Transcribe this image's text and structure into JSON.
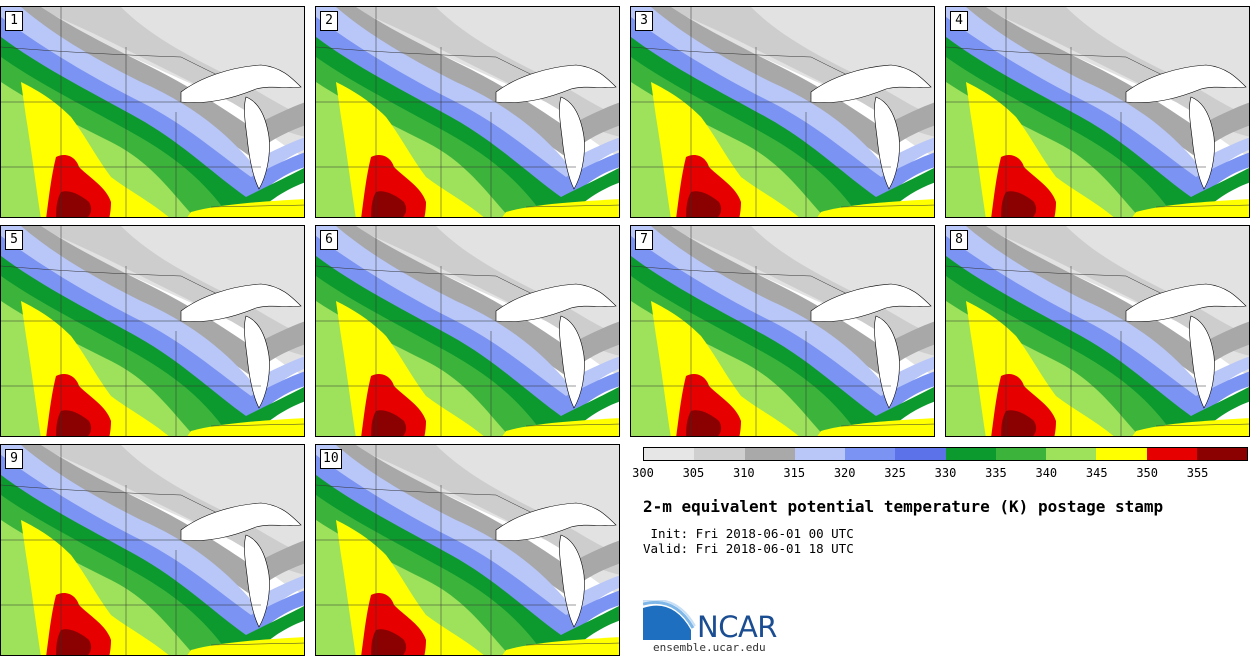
{
  "stamps": [
    {
      "label": "1"
    },
    {
      "label": "2"
    },
    {
      "label": "3"
    },
    {
      "label": "4"
    },
    {
      "label": "5"
    },
    {
      "label": "6"
    },
    {
      "label": "7"
    },
    {
      "label": "8"
    },
    {
      "label": "9"
    },
    {
      "label": "10"
    }
  ],
  "colorbar": {
    "ticks": [
      "300",
      "305",
      "310",
      "315",
      "320",
      "325",
      "330",
      "335",
      "340",
      "345",
      "350",
      "355"
    ],
    "colors": [
      "#e6e6e6",
      "#cfcfcf",
      "#a9a9a9",
      "#b8c6f8",
      "#7b93f2",
      "#5b72e8",
      "#0c9a2e",
      "#3cb43c",
      "#9de25a",
      "#ffff00",
      "#e60000",
      "#8b0000"
    ]
  },
  "title": "2-m equivalent potential temperature (K) postage stamp",
  "init": " Init: Fri 2018-06-01 00 UTC",
  "valid": "Valid: Fri 2018-06-01 18 UTC",
  "logo": {
    "text": "NCAR",
    "site": "ensemble.ucar.edu"
  }
}
